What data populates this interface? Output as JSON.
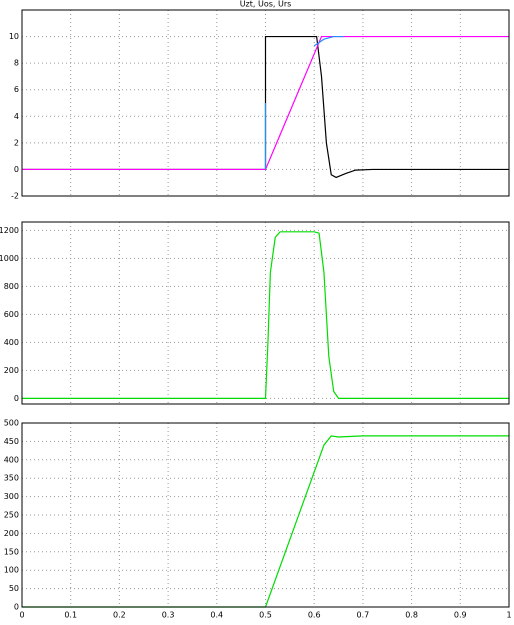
{
  "chart_data": [
    {
      "type": "line",
      "title": "Uzt, Uos, Urs",
      "xlim": [
        0,
        1
      ],
      "xticks": [
        0,
        0.1,
        0.2,
        0.3,
        0.4,
        0.5,
        0.6,
        0.7,
        0.8,
        0.9,
        1
      ],
      "xtick_labels": false,
      "ylim": [
        -2,
        12
      ],
      "yticks": [
        -2,
        0,
        2,
        4,
        6,
        8,
        10
      ],
      "grid": true,
      "series": [
        {
          "color": "#000000",
          "x": [
            0,
            0.5,
            0.5,
            0.605,
            0.615,
            0.625,
            0.635,
            0.645,
            0.665,
            0.685,
            0.72,
            1
          ],
          "values": [
            0,
            0,
            10,
            10,
            7,
            2,
            -0.4,
            -0.6,
            -0.3,
            -0.05,
            0,
            0
          ]
        },
        {
          "color": "#ff00ff",
          "x": [
            0,
            0.5,
            0.615,
            1
          ],
          "values": [
            0,
            0,
            10,
            10
          ]
        },
        {
          "color": "#1e90ff",
          "x": [
            0.5,
            0.5,
            0.5,
            0.6,
            0.62,
            0.64,
            0.66
          ],
          "values": [
            0,
            5,
            null,
            9.3,
            9.8,
            10,
            10
          ]
        }
      ]
    },
    {
      "type": "line",
      "xlim": [
        0,
        1
      ],
      "xticks": [
        0,
        0.1,
        0.2,
        0.3,
        0.4,
        0.5,
        0.6,
        0.7,
        0.8,
        0.9,
        1
      ],
      "xtick_labels": false,
      "ylim": [
        -40,
        1260
      ],
      "yticks": [
        0,
        200,
        400,
        600,
        800,
        1000,
        1200
      ],
      "grid": true,
      "series": [
        {
          "color": "#00dd00",
          "x": [
            0,
            0.5,
            0.505,
            0.51,
            0.52,
            0.53,
            0.6,
            0.61,
            0.62,
            0.63,
            0.64,
            0.65,
            1
          ],
          "values": [
            0,
            0,
            400,
            900,
            1150,
            1190,
            1190,
            1180,
            900,
            300,
            50,
            0,
            0
          ]
        }
      ]
    },
    {
      "type": "line",
      "xlim": [
        0,
        1
      ],
      "xticks": [
        0,
        0.1,
        0.2,
        0.3,
        0.4,
        0.5,
        0.6,
        0.7,
        0.8,
        0.9,
        1
      ],
      "xtick_labels": true,
      "ylim": [
        0,
        500
      ],
      "yticks": [
        0,
        50,
        100,
        150,
        200,
        250,
        300,
        350,
        400,
        450,
        500
      ],
      "grid": true,
      "series": [
        {
          "color": "#00dd00",
          "x": [
            0,
            0.5,
            0.62,
            0.635,
            0.65,
            0.7,
            1
          ],
          "values": [
            0,
            0,
            440,
            465,
            462,
            465,
            465
          ]
        }
      ]
    }
  ]
}
